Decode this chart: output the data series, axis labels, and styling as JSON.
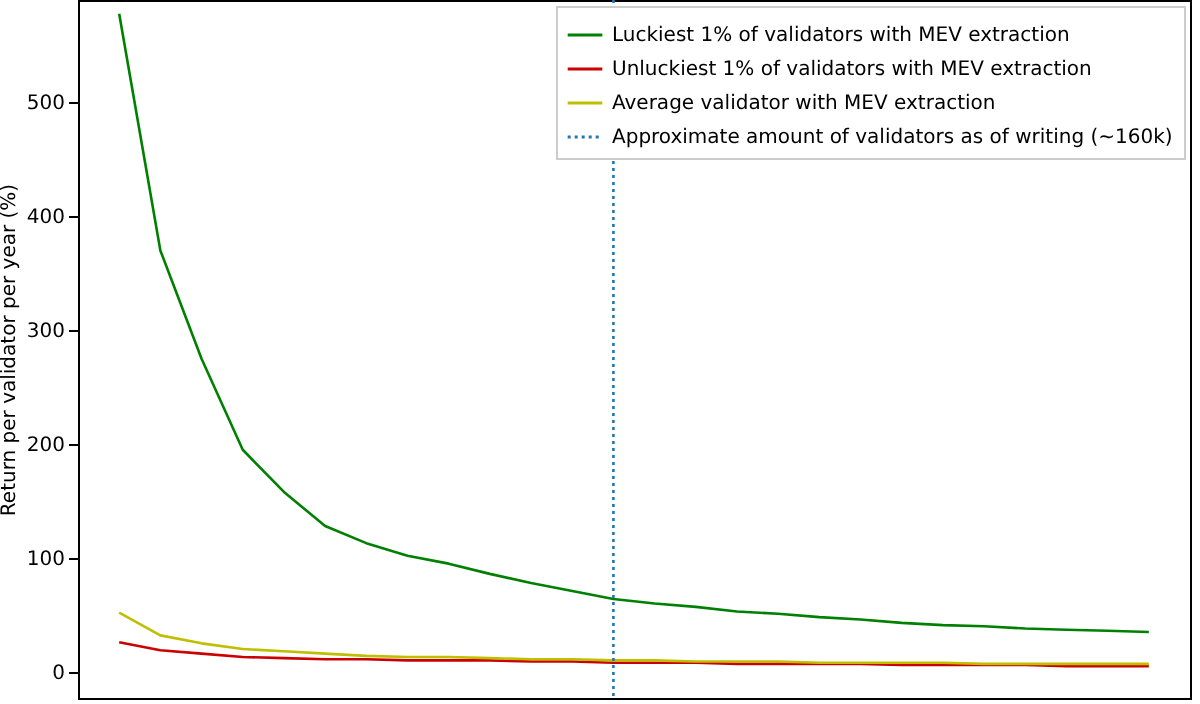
{
  "chart_data": {
    "type": "line",
    "ylabel": "Return per validator per year (%)",
    "categories": [
      null,
      null,
      null,
      null,
      null,
      null,
      null,
      null,
      null,
      null,
      null,
      null,
      null,
      null,
      null,
      null,
      null,
      null,
      null,
      null,
      null,
      null,
      null,
      null,
      null,
      null
    ],
    "series": [
      {
        "name": "Luckiest 1% of validators with MEV extraction",
        "color": "#008000",
        "values": [
          578,
          370,
          275,
          195,
          158,
          128,
          113,
          102,
          95,
          86,
          78,
          71,
          64,
          60,
          57,
          53,
          51,
          48,
          46,
          43,
          41,
          40,
          38,
          37,
          36,
          35
        ]
      },
      {
        "name": "Unluckiest 1% of validators with MEV extraction",
        "color": "#cc0000",
        "values": [
          26,
          19,
          16,
          13,
          12,
          11,
          11,
          10,
          10,
          10,
          9,
          9,
          8,
          8,
          8,
          7,
          7,
          7,
          7,
          6,
          6,
          6,
          6,
          5,
          5,
          5
        ]
      },
      {
        "name": "Average validator with MEV extraction",
        "color": "#bfbf00",
        "values": [
          52,
          32,
          25,
          20,
          18,
          16,
          14,
          13,
          13,
          12,
          11,
          11,
          10,
          10,
          9,
          9,
          9,
          8,
          8,
          8,
          8,
          7,
          7,
          7,
          7,
          7
        ]
      }
    ],
    "ylim": [
      -23,
      590
    ],
    "yticks": [
      0,
      100,
      200,
      300,
      400,
      500
    ],
    "annotations": [
      "Approximate amount of validators as of writing (~160k)"
    ],
    "legend": "top right",
    "tick_labels": "y",
    "line_style": "solid"
  }
}
